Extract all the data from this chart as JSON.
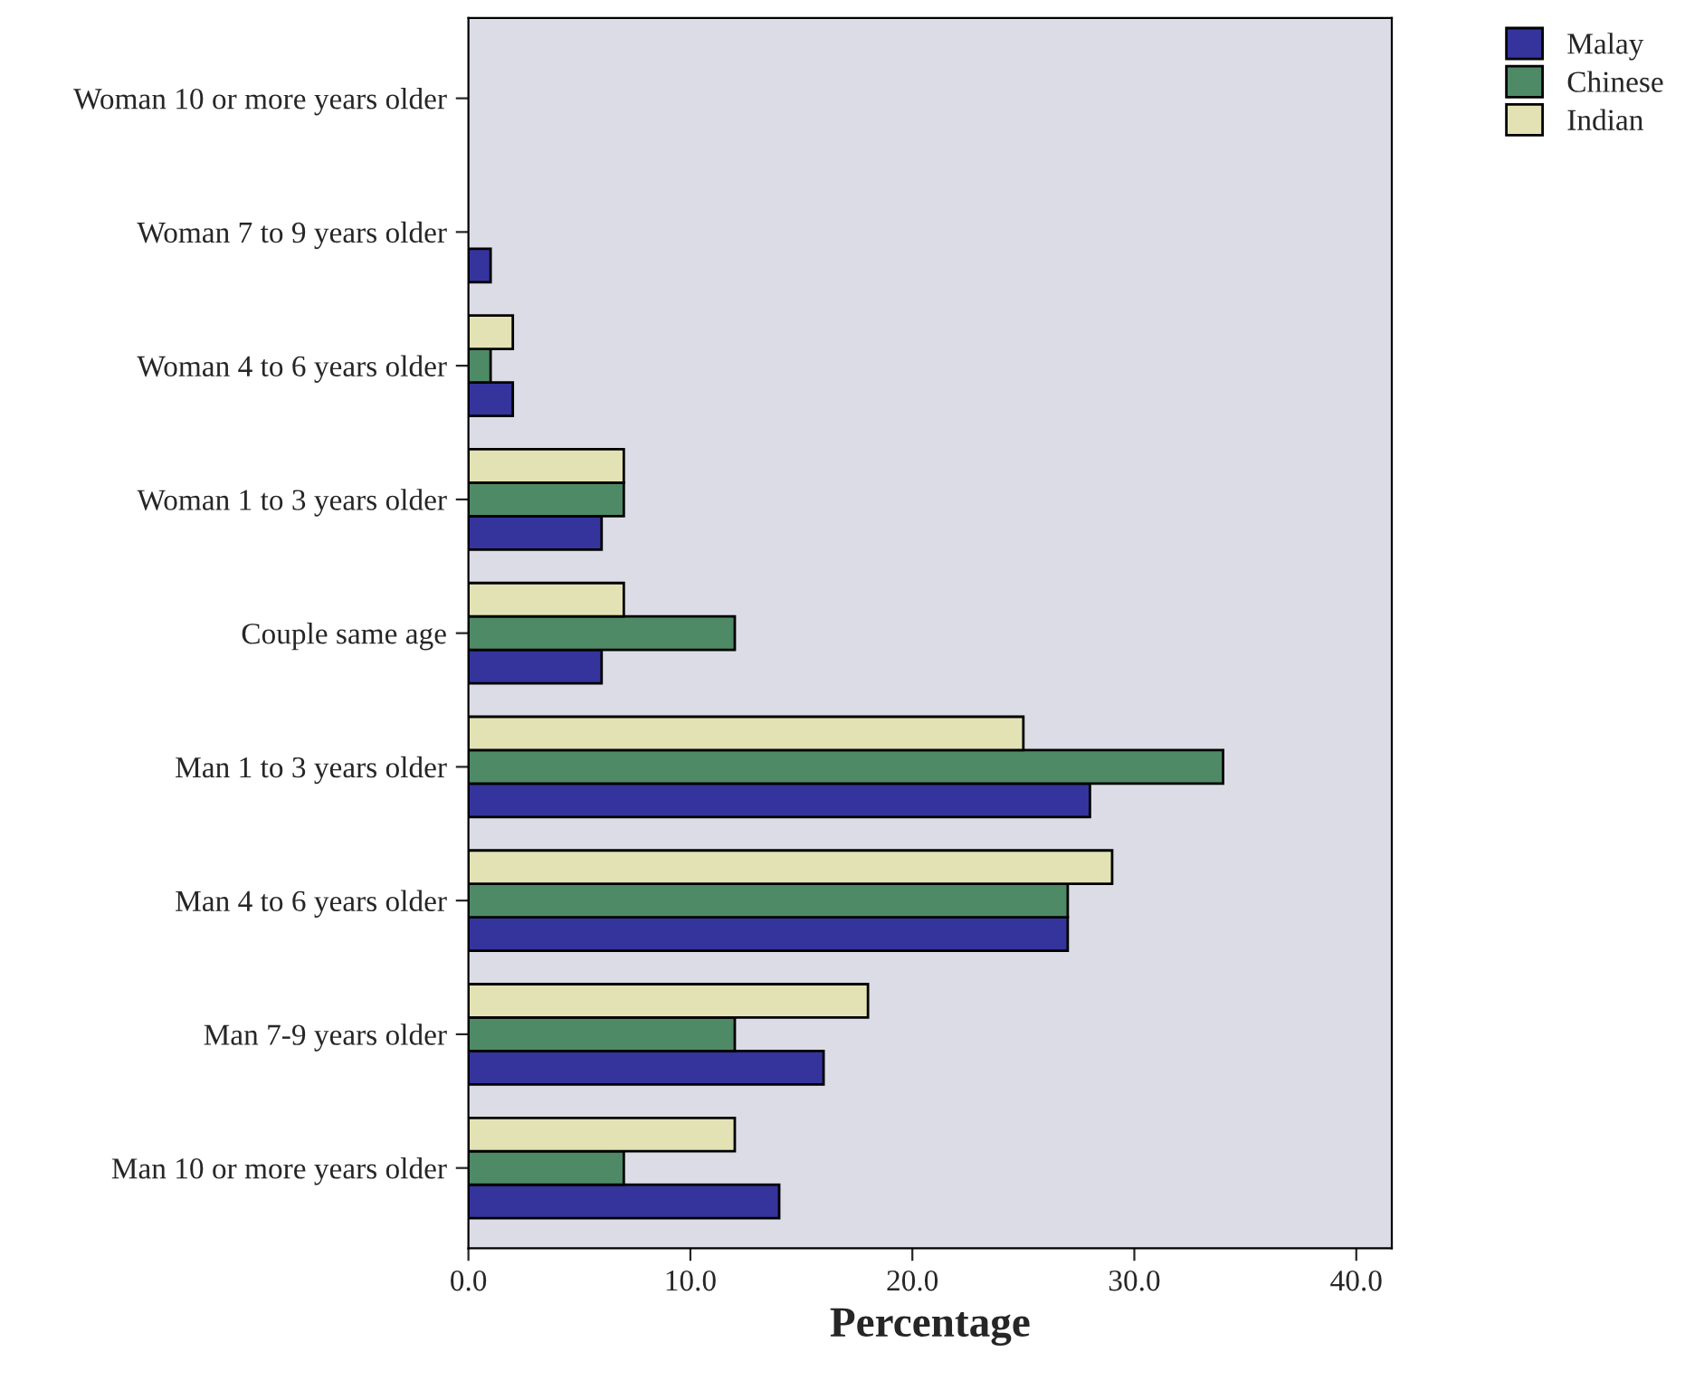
{
  "chart_data": {
    "type": "bar",
    "orientation": "horizontal",
    "xlabel": "Percentage",
    "categories": [
      "Woman 10 or more years older",
      "Woman 7 to 9 years older",
      "Woman 4 to 6 years older",
      "Woman 1 to 3 years older",
      "Couple same age",
      "Man 1 to 3 years older",
      "Man 4 to 6 years older",
      "Man 7-9 years older",
      "Man 10 or more years older"
    ],
    "series": [
      {
        "name": "Malay",
        "color": "#34349c",
        "values": [
          null,
          1,
          2,
          6,
          6,
          28,
          27,
          16,
          14
        ]
      },
      {
        "name": "Chinese",
        "color": "#4f8a66",
        "values": [
          null,
          null,
          1,
          7,
          12,
          34,
          27,
          12,
          7
        ]
      },
      {
        "name": "Indian",
        "color": "#e2e2b4",
        "values": [
          null,
          null,
          2,
          7,
          7,
          25,
          29,
          18,
          12
        ]
      }
    ],
    "xlim": [
      0,
      41.6
    ],
    "xticks": [
      {
        "value": 0,
        "label": "0.0"
      },
      {
        "value": 10,
        "label": "10.0"
      },
      {
        "value": 20,
        "label": "20.0"
      },
      {
        "value": 30,
        "label": "30.0"
      },
      {
        "value": 40,
        "label": "40.0"
      }
    ],
    "legend": "top right",
    "grid": false
  }
}
